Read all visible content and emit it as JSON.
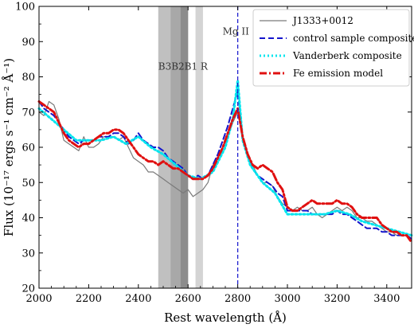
{
  "chart_data": {
    "type": "line",
    "xlabel": "Rest wavelength (Å)",
    "ylabel": "Flux (10⁻¹⁷ ergs s⁻¹ cm⁻² Å⁻¹)",
    "xlim": [
      2000,
      3500
    ],
    "ylim": [
      20,
      100
    ],
    "xticks": [
      2000,
      2200,
      2400,
      2600,
      2800,
      3000,
      3200,
      3400
    ],
    "yticks": [
      20,
      30,
      40,
      50,
      60,
      70,
      80,
      90,
      100
    ],
    "grid": false,
    "legend_position": "top-right",
    "bands": [
      {
        "label": "B3",
        "x0": 2480,
        "x1": 2600,
        "color": "#c0c0c0"
      },
      {
        "label": "B2",
        "x0": 2530,
        "x1": 2600,
        "color": "#a8a8a8"
      },
      {
        "label": "B1",
        "x0": 2570,
        "x1": 2600,
        "color": "#8c8c8c"
      },
      {
        "label": "R",
        "x0": 2630,
        "x1": 2660,
        "color": "#d4d4d4"
      }
    ],
    "band_label_text": "B3B2B1 R",
    "line_marker": {
      "label": "Mg II",
      "x": 2800,
      "color": "#1f1fd0"
    },
    "series": [
      {
        "name": "J1333+0012",
        "style": "solid",
        "color": "#7a7a7a",
        "x": [
          2000,
          2020,
          2040,
          2060,
          2080,
          2100,
          2120,
          2140,
          2160,
          2180,
          2200,
          2220,
          2240,
          2260,
          2280,
          2300,
          2320,
          2340,
          2360,
          2380,
          2400,
          2420,
          2440,
          2460,
          2480,
          2500,
          2520,
          2540,
          2560,
          2580,
          2600,
          2620,
          2640,
          2660,
          2680,
          2700,
          2720,
          2740,
          2760,
          2780,
          2800,
          2820,
          2840,
          2860,
          2880,
          2900,
          2920,
          2940,
          2960,
          2980,
          3000,
          3020,
          3040,
          3060,
          3080,
          3100,
          3120,
          3140,
          3160,
          3180,
          3200,
          3220,
          3240,
          3260,
          3280,
          3300,
          3320,
          3340,
          3360,
          3380,
          3400,
          3420,
          3440,
          3460,
          3480,
          3500
        ],
        "y": [
          70,
          69,
          73,
          72,
          68,
          62,
          61,
          60,
          59,
          63,
          60,
          60,
          61,
          63,
          63,
          63,
          62,
          63,
          60,
          57,
          56,
          55,
          53,
          53,
          52,
          51,
          50,
          49,
          48,
          47,
          48,
          46,
          47,
          48,
          50,
          55,
          57,
          60,
          63,
          67,
          70,
          62,
          58,
          55,
          52,
          50,
          50,
          49,
          46,
          44,
          43,
          42,
          43,
          42,
          42,
          43,
          41,
          40,
          41,
          42,
          43,
          42,
          43,
          42,
          40,
          40,
          39,
          39,
          38,
          37,
          36,
          36,
          35,
          35,
          35,
          34
        ]
      },
      {
        "name": "control sample composite",
        "style": "dashed",
        "color": "#1414cc",
        "x": [
          2000,
          2020,
          2040,
          2060,
          2080,
          2100,
          2120,
          2140,
          2160,
          2180,
          2200,
          2220,
          2240,
          2260,
          2280,
          2300,
          2320,
          2340,
          2360,
          2380,
          2400,
          2420,
          2440,
          2460,
          2480,
          2500,
          2520,
          2540,
          2560,
          2580,
          2600,
          2620,
          2640,
          2660,
          2680,
          2700,
          2720,
          2740,
          2760,
          2780,
          2800,
          2820,
          2840,
          2860,
          2880,
          2900,
          2920,
          2940,
          2960,
          2980,
          3000,
          3020,
          3040,
          3060,
          3080,
          3100,
          3120,
          3140,
          3160,
          3180,
          3200,
          3220,
          3240,
          3260,
          3280,
          3300,
          3320,
          3340,
          3360,
          3380,
          3400,
          3420,
          3440,
          3460,
          3480,
          3500
        ],
        "y": [
          73,
          71,
          70,
          69,
          67,
          65,
          63,
          62,
          61,
          62,
          62,
          62,
          63,
          63,
          63,
          64,
          64,
          63,
          61,
          62,
          64,
          62,
          61,
          60,
          60,
          59,
          57,
          56,
          55,
          54,
          52,
          51,
          52,
          51,
          52,
          55,
          58,
          62,
          66,
          71,
          76,
          63,
          58,
          54,
          52,
          51,
          50,
          49,
          47,
          46,
          42,
          42,
          42,
          42,
          42,
          41,
          41,
          41,
          41,
          41,
          42,
          41,
          41,
          40,
          39,
          38,
          37,
          37,
          37,
          36,
          36,
          35,
          35,
          35,
          35,
          34
        ]
      },
      {
        "name": "Vanderberk composite",
        "style": "dotted",
        "color": "#00e5ee",
        "x": [
          2000,
          2050,
          2100,
          2150,
          2200,
          2250,
          2300,
          2350,
          2400,
          2450,
          2500,
          2550,
          2600,
          2650,
          2700,
          2750,
          2780,
          2800,
          2820,
          2850,
          2900,
          2950,
          3000,
          3050,
          3100,
          3150,
          3200,
          3250,
          3300,
          3350,
          3400,
          3450,
          3500
        ],
        "y": [
          71,
          68,
          65,
          62,
          62,
          62,
          63,
          61,
          63,
          60,
          58,
          55,
          52,
          51,
          53,
          60,
          68,
          79,
          62,
          55,
          50,
          47,
          41,
          41,
          41,
          41,
          42,
          41,
          39,
          38,
          37,
          36,
          35
        ]
      },
      {
        "name": "Fe emission model",
        "style": "dashdot",
        "color": "#e01010",
        "x": [
          2000,
          2020,
          2040,
          2060,
          2080,
          2100,
          2120,
          2140,
          2160,
          2180,
          2200,
          2220,
          2240,
          2260,
          2280,
          2300,
          2320,
          2340,
          2360,
          2380,
          2400,
          2420,
          2440,
          2460,
          2480,
          2500,
          2520,
          2540,
          2560,
          2580,
          2600,
          2620,
          2640,
          2660,
          2680,
          2700,
          2720,
          2740,
          2760,
          2780,
          2800,
          2820,
          2840,
          2860,
          2880,
          2900,
          2920,
          2940,
          2960,
          2980,
          3000,
          3020,
          3040,
          3060,
          3080,
          3100,
          3120,
          3140,
          3160,
          3180,
          3200,
          3220,
          3240,
          3260,
          3280,
          3300,
          3320,
          3340,
          3360,
          3380,
          3400,
          3420,
          3440,
          3460,
          3480,
          3500
        ],
        "y": [
          73,
          72,
          71,
          70,
          67,
          64,
          62,
          61,
          60,
          61,
          61,
          62,
          63,
          64,
          64,
          65,
          65,
          64,
          62,
          60,
          58,
          57,
          56,
          56,
          55,
          56,
          55,
          54,
          54,
          53,
          52,
          51,
          51,
          51,
          52,
          54,
          57,
          60,
          64,
          68,
          71,
          63,
          58,
          55,
          54,
          55,
          54,
          53,
          50,
          48,
          43,
          42,
          42,
          43,
          44,
          45,
          44,
          44,
          44,
          44,
          45,
          44,
          44,
          43,
          41,
          40,
          40,
          40,
          40,
          38,
          37,
          36,
          36,
          35,
          35,
          33
        ]
      }
    ]
  }
}
